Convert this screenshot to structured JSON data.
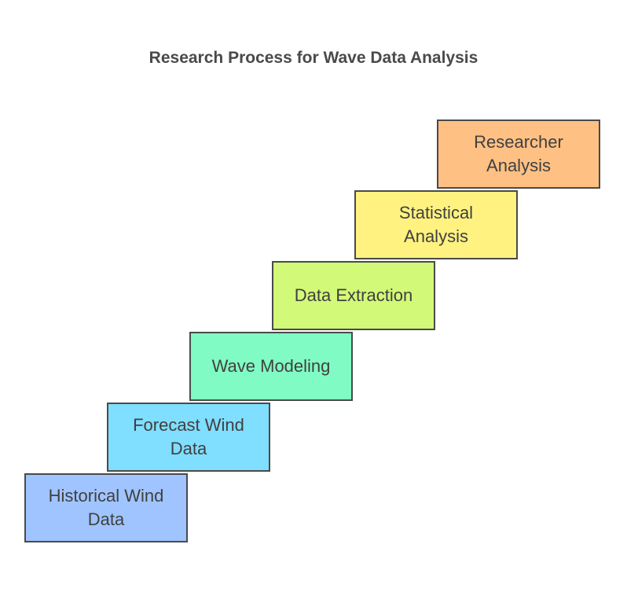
{
  "title": "Research Process for Wave Data Analysis",
  "steps": [
    {
      "label": "Historical Wind\nData",
      "color": "#a0c4ff"
    },
    {
      "label": "Forecast Wind\nData",
      "color": "#80deff"
    },
    {
      "label": "Wave Modeling",
      "color": "#80fbc3"
    },
    {
      "label": "Data Extraction",
      "color": "#d2f977"
    },
    {
      "label": "Statistical\nAnalysis",
      "color": "#fff281"
    },
    {
      "label": "Researcher\nAnalysis",
      "color": "#ffc084"
    }
  ]
}
